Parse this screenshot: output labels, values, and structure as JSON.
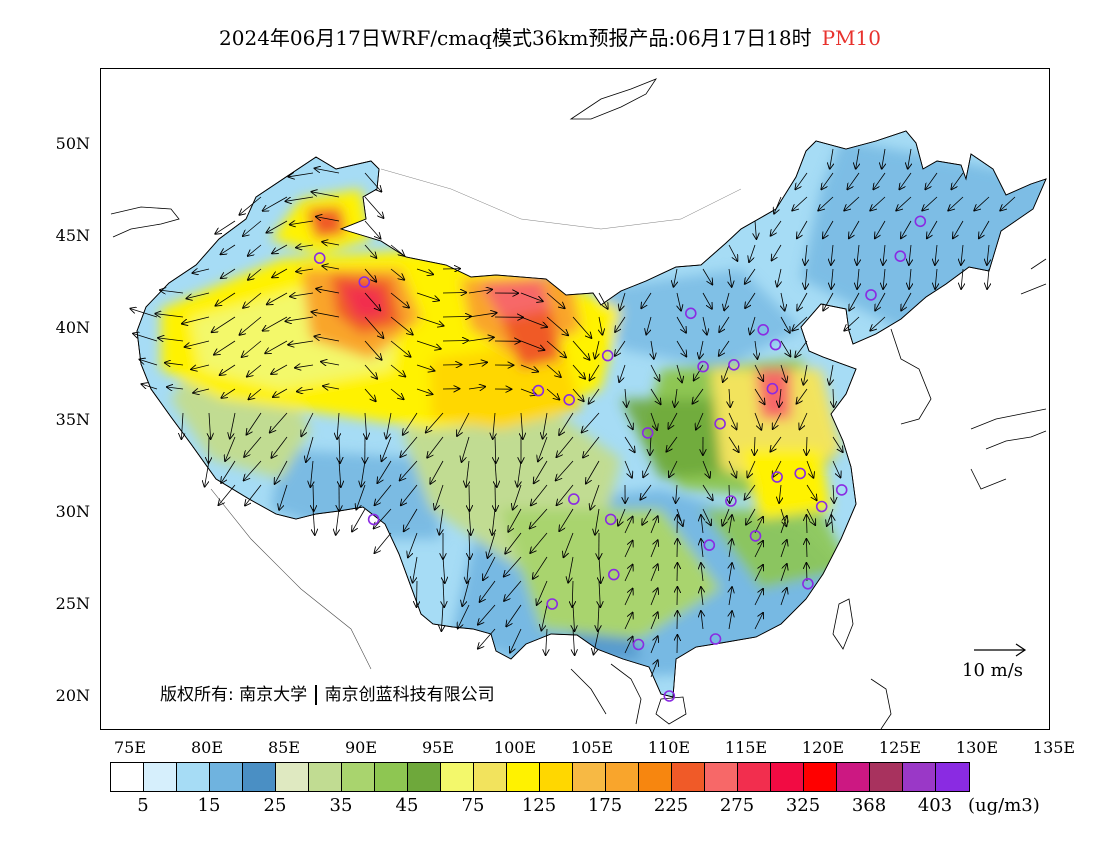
{
  "title": {
    "text": "2024年06月17日WRF/cmaq模式36km预报产品:06月17日18时",
    "pollutant": "PM10",
    "pollutant_color": "#e8322d"
  },
  "axes": {
    "lat_labels": [
      "50N",
      "45N",
      "40N",
      "35N",
      "30N",
      "25N",
      "20N"
    ],
    "lon_labels": [
      "75E",
      "80E",
      "85E",
      "90E",
      "95E",
      "100E",
      "105E",
      "110E",
      "115E",
      "120E",
      "125E",
      "130E",
      "135E"
    ]
  },
  "copyright": {
    "prefix": "版权所有:",
    "org1": "南京大学",
    "org2": "南京创蓝科技有限公司"
  },
  "wind_reference": {
    "label": "10 m/s",
    "speed_ms": 10
  },
  "legend": {
    "colors": [
      "#ffffff",
      "#d6effc",
      "#a6dcf5",
      "#6fb3df",
      "#4a8fc4",
      "#dfe9c1",
      "#c1dc92",
      "#a9d46e",
      "#8ec652",
      "#6ea83b",
      "#f3f86b",
      "#f2e35d",
      "#fff200",
      "#ffd700",
      "#f7b944",
      "#f9a52c",
      "#f7860f",
      "#f05a28",
      "#f76868",
      "#f22e4e",
      "#f20b43",
      "#ff0000",
      "#cc1882",
      "#a8325e",
      "#9a38c7",
      "#8a2be2"
    ],
    "tick_labels": [
      "5",
      "15",
      "25",
      "35",
      "45",
      "75",
      "125",
      "175",
      "225",
      "275",
      "325",
      "368",
      "403"
    ],
    "unit": "(ug/m3)"
  },
  "stations": [
    [
      87.6,
      43.8
    ],
    [
      126.6,
      45.8
    ],
    [
      125.3,
      43.9
    ],
    [
      123.4,
      41.8
    ],
    [
      116.4,
      39.9
    ],
    [
      117.2,
      39.1
    ],
    [
      111.7,
      40.8
    ],
    [
      112.5,
      37.9
    ],
    [
      114.5,
      38.0
    ],
    [
      106.3,
      38.5
    ],
    [
      103.8,
      36.1
    ],
    [
      101.8,
      36.6
    ],
    [
      117.0,
      36.7
    ],
    [
      113.6,
      34.8
    ],
    [
      108.9,
      34.3
    ],
    [
      117.3,
      31.9
    ],
    [
      118.8,
      32.1
    ],
    [
      121.5,
      31.2
    ],
    [
      120.2,
      30.3
    ],
    [
      114.3,
      30.6
    ],
    [
      104.1,
      30.7
    ],
    [
      106.5,
      29.6
    ],
    [
      91.1,
      29.6
    ],
    [
      112.9,
      28.2
    ],
    [
      115.9,
      28.7
    ],
    [
      106.7,
      26.6
    ],
    [
      102.7,
      25.0
    ],
    [
      119.3,
      26.1
    ],
    [
      113.3,
      23.1
    ],
    [
      108.3,
      22.8
    ],
    [
      110.3,
      20.0
    ],
    [
      90.5,
      42.5
    ]
  ]
}
